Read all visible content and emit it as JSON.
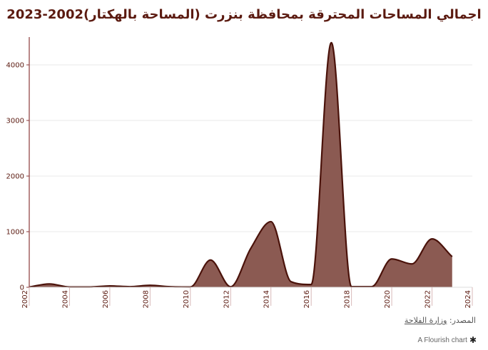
{
  "header": {
    "title": "اجمالي المساحات المحترقة بمحافظة بنزرت (المساحة بالهكتار)2002-2023"
  },
  "footer": {
    "source_label": "المصدر:",
    "source_value": "وزارة الفلاحة",
    "flourish_label": "A Flourish chart",
    "flourish_icon": "flourish-asterisk-icon"
  },
  "colors": {
    "title": "#5b1a10",
    "area_fill": "#8b5a52",
    "area_line": "#4a120a",
    "axis": "#8b3a3a"
  },
  "chart_data": {
    "type": "area",
    "title": "اجمالي المساحات المحترقة بمحافظة بنزرت (المساحة بالهكتار)2002-2023",
    "xlabel": "",
    "ylabel": "",
    "x": [
      2002,
      2003,
      2004,
      2005,
      2006,
      2007,
      2008,
      2009,
      2010,
      2011,
      2012,
      2013,
      2014,
      2015,
      2016,
      2017,
      2018,
      2019,
      2020,
      2021,
      2022,
      2023
    ],
    "values": [
      5,
      60,
      5,
      5,
      25,
      10,
      35,
      10,
      5,
      490,
      10,
      700,
      1180,
      100,
      50,
      4400,
      10,
      10,
      510,
      420,
      870,
      550
    ],
    "xlim": [
      2002,
      2024
    ],
    "ylim": [
      0,
      4500
    ],
    "x_ticks": [
      "2002",
      "2004",
      "2006",
      "2008",
      "2010",
      "2012",
      "2014",
      "2016",
      "2018",
      "2020",
      "2022",
      "2024"
    ],
    "y_ticks": [
      "0",
      "1000",
      "2000",
      "3000",
      "4000"
    ],
    "grid": "horizontal",
    "legend": "none"
  }
}
